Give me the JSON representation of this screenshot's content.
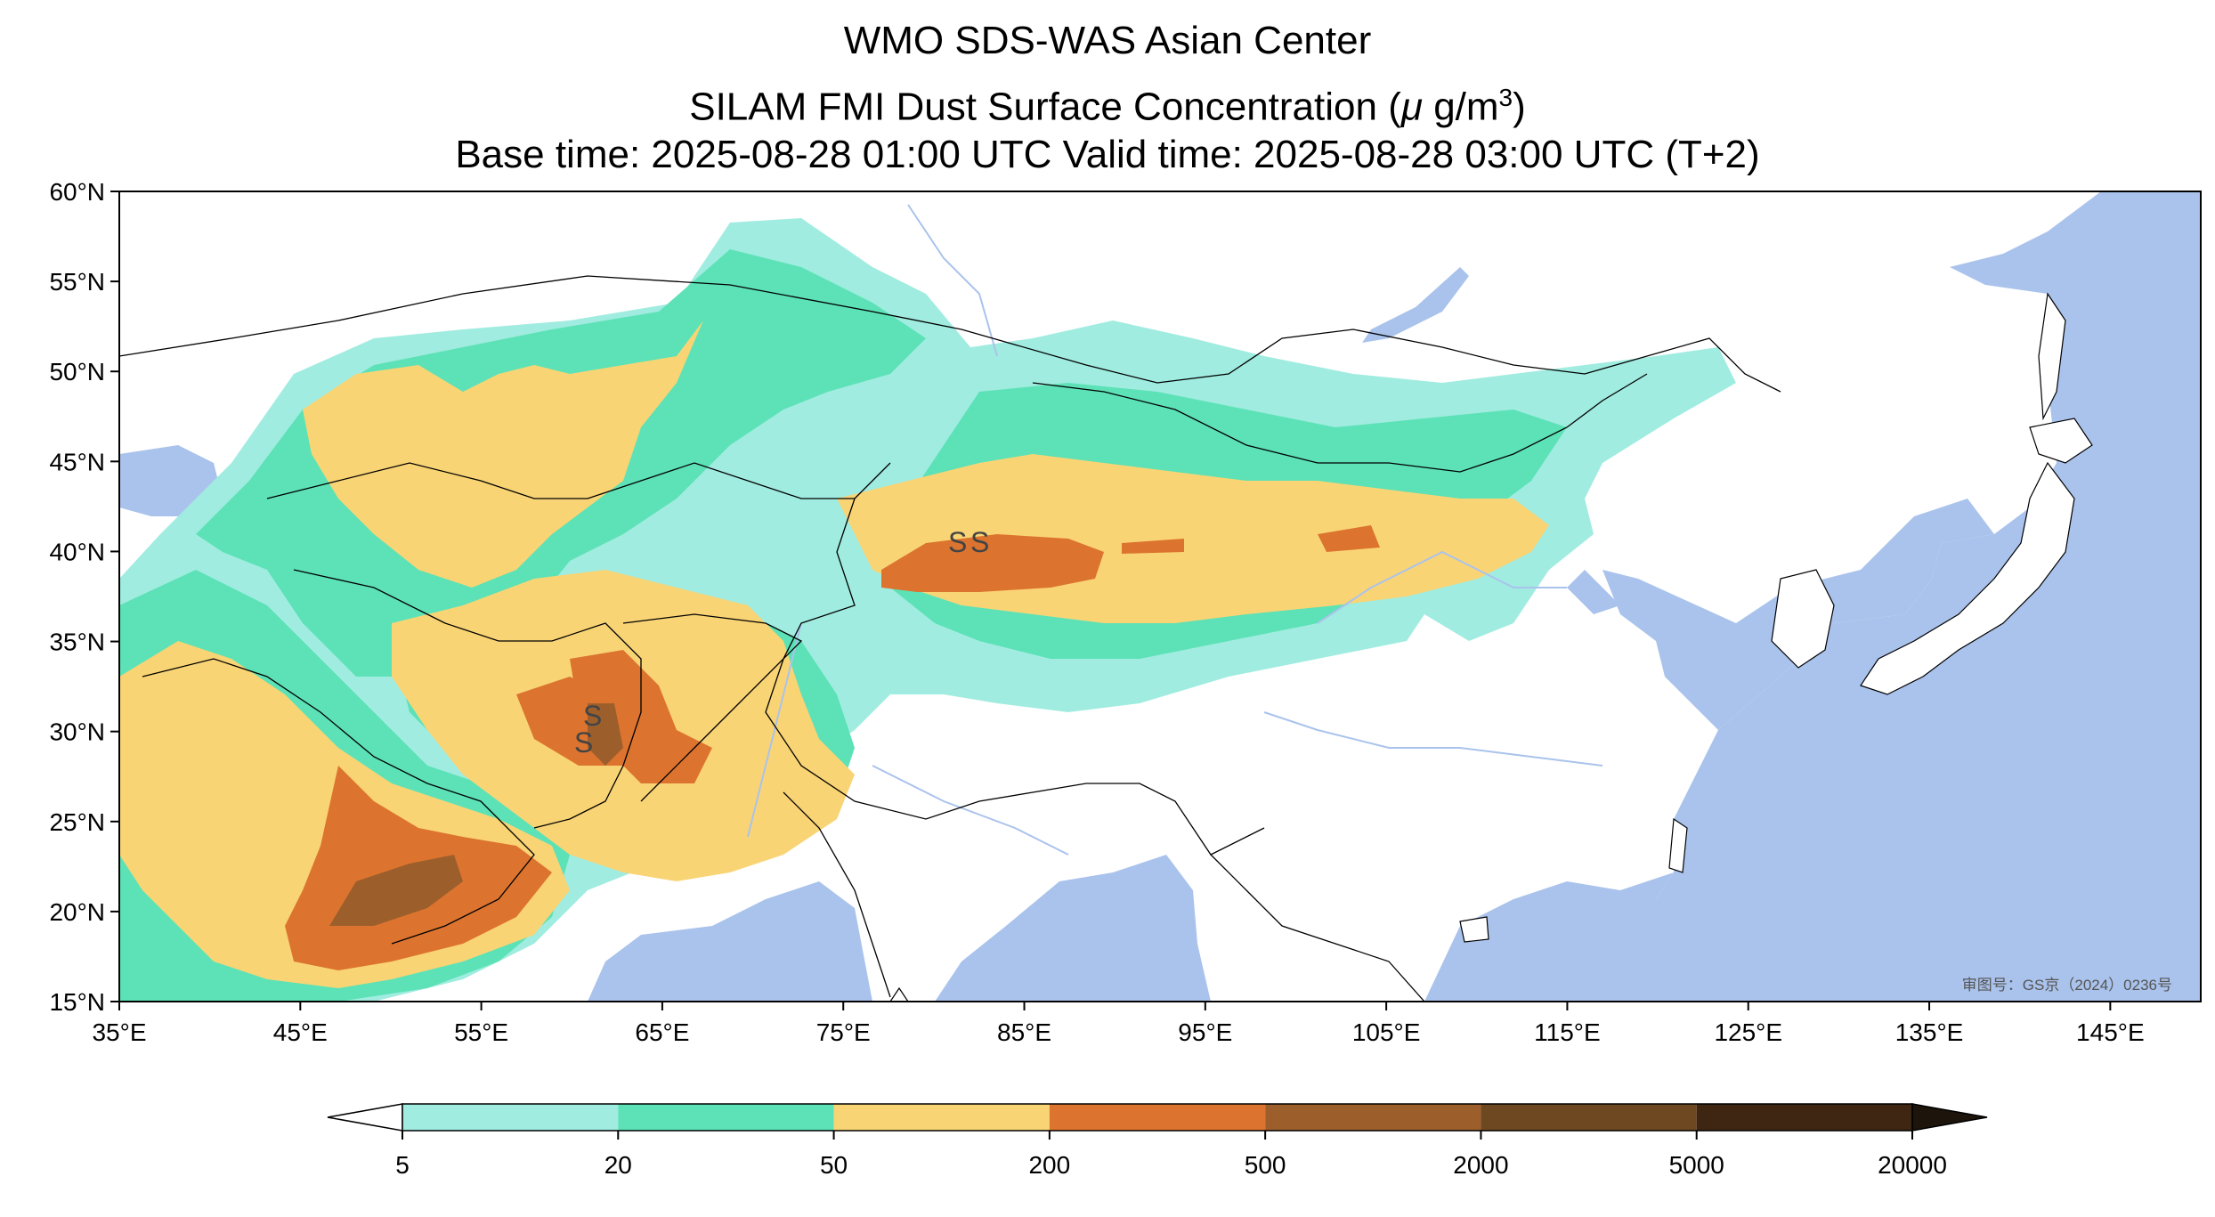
{
  "title": {
    "line1": "WMO SDS-WAS Asian Center",
    "line2_prefix": "SILAM FMI Dust Surface Concentration (",
    "line2_mu": "μ",
    "line2_unit": " g/m",
    "line2_sup": "3",
    "line2_suffix": ")",
    "line3": "Base time: 2025-08-28 01:00 UTC Valid time: 2025-08-28 03:00 UTC (T+2)"
  },
  "axes": {
    "lon_ticks": [
      "35°E",
      "45°E",
      "55°E",
      "65°E",
      "75°E",
      "85°E",
      "95°E",
      "105°E",
      "115°E",
      "125°E",
      "135°E",
      "145°E"
    ],
    "lat_ticks": [
      "60°N",
      "55°N",
      "50°N",
      "45°N",
      "40°N",
      "35°N",
      "30°N",
      "25°N",
      "20°N",
      "15°N"
    ],
    "lon_range": [
      35,
      150
    ],
    "lat_range": [
      15,
      60
    ]
  },
  "annotation": "审图号：GS京（2024）0236号",
  "colorbar": {
    "boundaries": [
      "5",
      "20",
      "50",
      "200",
      "500",
      "2000",
      "5000",
      "20000"
    ],
    "colors": [
      "#a0ece0",
      "#5ce2b6",
      "#f9d475",
      "#dc742f",
      "#9c5f2c",
      "#6e4820",
      "#3e2612"
    ],
    "extend": "both"
  },
  "map_colors": {
    "ocean": "#aac3ec",
    "land": "#ffffff",
    "rivers": "#aac3ec"
  }
}
